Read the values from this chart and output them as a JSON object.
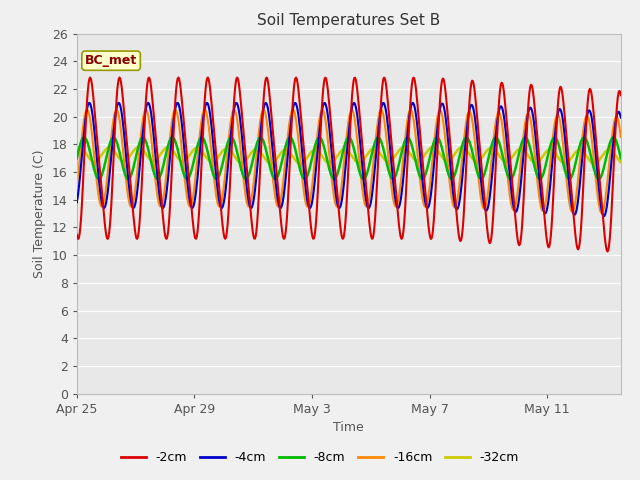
{
  "title": "Soil Temperatures Set B",
  "xlabel": "Time",
  "ylabel": "Soil Temperature (C)",
  "annotation": "BC_met",
  "fig_bg_color": "#f0f0f0",
  "plot_bg_color": "#e8e8e8",
  "ylim": [
    0,
    26
  ],
  "yticks": [
    0,
    2,
    4,
    6,
    8,
    10,
    12,
    14,
    16,
    18,
    20,
    22,
    24,
    26
  ],
  "num_days": 18.5,
  "series": {
    "-2cm": {
      "color": "#dd0000",
      "lw": 1.5
    },
    "-4cm": {
      "color": "#0000cc",
      "lw": 1.5
    },
    "-8cm": {
      "color": "#00bb00",
      "lw": 1.8
    },
    "-16cm": {
      "color": "#ff8800",
      "lw": 1.5
    },
    "-32cm": {
      "color": "#cccc00",
      "lw": 1.8
    }
  },
  "xtick_labels": [
    "Apr 25",
    "Apr 29",
    "May 3",
    "May 7",
    "May 11"
  ],
  "xtick_positions": [
    0,
    4,
    8,
    12,
    16
  ]
}
